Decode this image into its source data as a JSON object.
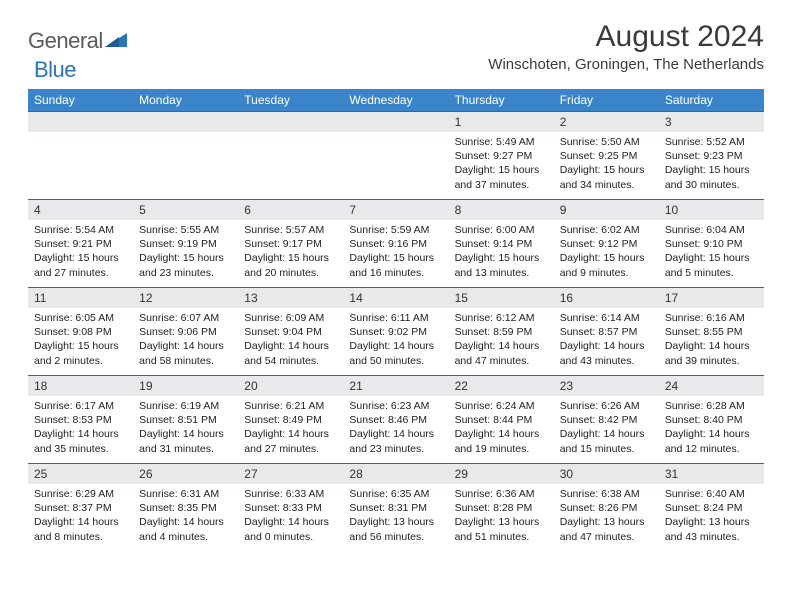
{
  "logo": {
    "text1": "General",
    "text2": "Blue"
  },
  "title": "August 2024",
  "location": "Winschoten, Groningen, The Netherlands",
  "colors": {
    "header_bg": "#3a85c9",
    "header_text": "#ffffff",
    "daynum_bg": "#e7e9ea",
    "rule": "#2a6aa8",
    "logo_gray": "#5a5a5a",
    "logo_blue": "#2a74b8"
  },
  "fonts": {
    "title_size": 30,
    "location_size": 15,
    "dayhead_size": 12,
    "daynum_size": 12,
    "body_size": 10.5
  },
  "day_names": [
    "Sunday",
    "Monday",
    "Tuesday",
    "Wednesday",
    "Thursday",
    "Friday",
    "Saturday"
  ],
  "weeks": [
    [
      null,
      null,
      null,
      null,
      {
        "n": "1",
        "sr": "5:49 AM",
        "ss": "9:27 PM",
        "dl": "15 hours and 37 minutes."
      },
      {
        "n": "2",
        "sr": "5:50 AM",
        "ss": "9:25 PM",
        "dl": "15 hours and 34 minutes."
      },
      {
        "n": "3",
        "sr": "5:52 AM",
        "ss": "9:23 PM",
        "dl": "15 hours and 30 minutes."
      }
    ],
    [
      {
        "n": "4",
        "sr": "5:54 AM",
        "ss": "9:21 PM",
        "dl": "15 hours and 27 minutes."
      },
      {
        "n": "5",
        "sr": "5:55 AM",
        "ss": "9:19 PM",
        "dl": "15 hours and 23 minutes."
      },
      {
        "n": "6",
        "sr": "5:57 AM",
        "ss": "9:17 PM",
        "dl": "15 hours and 20 minutes."
      },
      {
        "n": "7",
        "sr": "5:59 AM",
        "ss": "9:16 PM",
        "dl": "15 hours and 16 minutes."
      },
      {
        "n": "8",
        "sr": "6:00 AM",
        "ss": "9:14 PM",
        "dl": "15 hours and 13 minutes."
      },
      {
        "n": "9",
        "sr": "6:02 AM",
        "ss": "9:12 PM",
        "dl": "15 hours and 9 minutes."
      },
      {
        "n": "10",
        "sr": "6:04 AM",
        "ss": "9:10 PM",
        "dl": "15 hours and 5 minutes."
      }
    ],
    [
      {
        "n": "11",
        "sr": "6:05 AM",
        "ss": "9:08 PM",
        "dl": "15 hours and 2 minutes."
      },
      {
        "n": "12",
        "sr": "6:07 AM",
        "ss": "9:06 PM",
        "dl": "14 hours and 58 minutes."
      },
      {
        "n": "13",
        "sr": "6:09 AM",
        "ss": "9:04 PM",
        "dl": "14 hours and 54 minutes."
      },
      {
        "n": "14",
        "sr": "6:11 AM",
        "ss": "9:02 PM",
        "dl": "14 hours and 50 minutes."
      },
      {
        "n": "15",
        "sr": "6:12 AM",
        "ss": "8:59 PM",
        "dl": "14 hours and 47 minutes."
      },
      {
        "n": "16",
        "sr": "6:14 AM",
        "ss": "8:57 PM",
        "dl": "14 hours and 43 minutes."
      },
      {
        "n": "17",
        "sr": "6:16 AM",
        "ss": "8:55 PM",
        "dl": "14 hours and 39 minutes."
      }
    ],
    [
      {
        "n": "18",
        "sr": "6:17 AM",
        "ss": "8:53 PM",
        "dl": "14 hours and 35 minutes."
      },
      {
        "n": "19",
        "sr": "6:19 AM",
        "ss": "8:51 PM",
        "dl": "14 hours and 31 minutes."
      },
      {
        "n": "20",
        "sr": "6:21 AM",
        "ss": "8:49 PM",
        "dl": "14 hours and 27 minutes."
      },
      {
        "n": "21",
        "sr": "6:23 AM",
        "ss": "8:46 PM",
        "dl": "14 hours and 23 minutes."
      },
      {
        "n": "22",
        "sr": "6:24 AM",
        "ss": "8:44 PM",
        "dl": "14 hours and 19 minutes."
      },
      {
        "n": "23",
        "sr": "6:26 AM",
        "ss": "8:42 PM",
        "dl": "14 hours and 15 minutes."
      },
      {
        "n": "24",
        "sr": "6:28 AM",
        "ss": "8:40 PM",
        "dl": "14 hours and 12 minutes."
      }
    ],
    [
      {
        "n": "25",
        "sr": "6:29 AM",
        "ss": "8:37 PM",
        "dl": "14 hours and 8 minutes."
      },
      {
        "n": "26",
        "sr": "6:31 AM",
        "ss": "8:35 PM",
        "dl": "14 hours and 4 minutes."
      },
      {
        "n": "27",
        "sr": "6:33 AM",
        "ss": "8:33 PM",
        "dl": "14 hours and 0 minutes."
      },
      {
        "n": "28",
        "sr": "6:35 AM",
        "ss": "8:31 PM",
        "dl": "13 hours and 56 minutes."
      },
      {
        "n": "29",
        "sr": "6:36 AM",
        "ss": "8:28 PM",
        "dl": "13 hours and 51 minutes."
      },
      {
        "n": "30",
        "sr": "6:38 AM",
        "ss": "8:26 PM",
        "dl": "13 hours and 47 minutes."
      },
      {
        "n": "31",
        "sr": "6:40 AM",
        "ss": "8:24 PM",
        "dl": "13 hours and 43 minutes."
      }
    ]
  ],
  "labels": {
    "sunrise": "Sunrise:",
    "sunset": "Sunset:",
    "daylight": "Daylight:"
  }
}
